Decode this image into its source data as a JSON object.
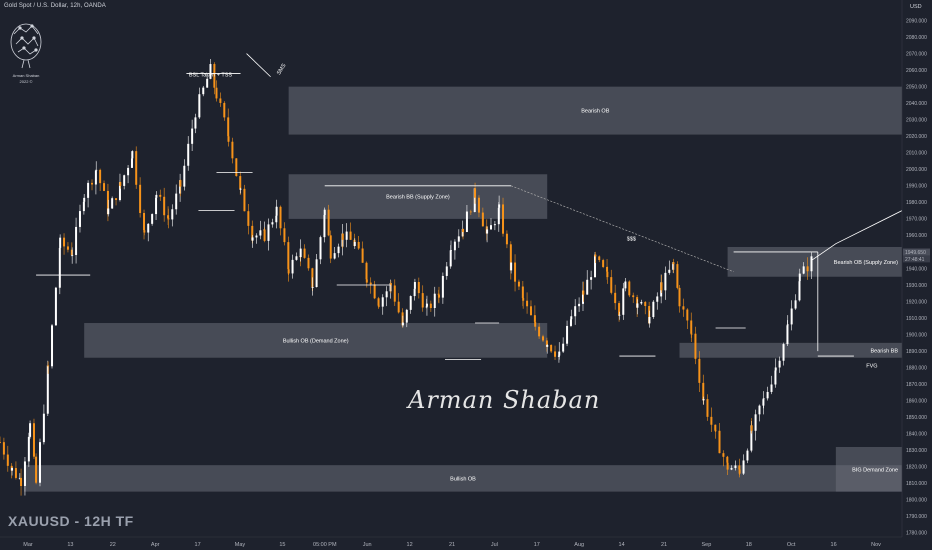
{
  "header": {
    "title": "Gold Spot / U.S. Dollar, 12h, OANDA",
    "currency": "USD",
    "symbol_tf": "XAUUSD - 12H TF"
  },
  "branding": {
    "logo_text_name": "Arman Shaban",
    "logo_text_year": "2022 ©",
    "signature": "Arman Shaban"
  },
  "colors": {
    "background": "#1e222d",
    "bull_candle": "#ffffff",
    "bear_candle": "#f7931a",
    "zone_fill": "#6a6d78",
    "axis_text": "#b2b5be"
  },
  "chart_data": {
    "type": "candlestick",
    "ylim": [
      1780,
      2100
    ],
    "yticks": [
      1780,
      1790,
      1800,
      1810,
      1820,
      1830,
      1840,
      1850,
      1860,
      1870,
      1880,
      1890,
      1900,
      1910,
      1920,
      1930,
      1940,
      1950,
      1960,
      1970,
      1980,
      1990,
      2000,
      2010,
      2020,
      2030,
      2040,
      2050,
      2060,
      2070,
      2080,
      2090
    ],
    "xticks": [
      "Mar",
      "13",
      "22",
      "Apr",
      "17",
      "May",
      "15",
      "05:00 PM",
      "Jun",
      "12",
      "21",
      "Jul",
      "17",
      "Aug",
      "14",
      "21",
      "Sep",
      "18",
      "Oct",
      "16",
      "Nov"
    ],
    "price_labels": [
      {
        "text": "1949.650",
        "y": 1949.65
      },
      {
        "text": "27:48:41",
        "y": 1945.5
      }
    ],
    "path": [
      [
        0,
        1835
      ],
      [
        4,
        1818
      ],
      [
        7,
        1812
      ],
      [
        10,
        1845
      ],
      [
        12,
        1810
      ],
      [
        16,
        1880
      ],
      [
        20,
        1955
      ],
      [
        24,
        1950
      ],
      [
        28,
        1985
      ],
      [
        32,
        2000
      ],
      [
        36,
        1975
      ],
      [
        40,
        1990
      ],
      [
        44,
        2010
      ],
      [
        48,
        1960
      ],
      [
        52,
        1985
      ],
      [
        56,
        1970
      ],
      [
        60,
        1990
      ],
      [
        65,
        2035
      ],
      [
        70,
        2060
      ],
      [
        72,
        2045
      ],
      [
        76,
        2020
      ],
      [
        80,
        1985
      ],
      [
        84,
        1960
      ],
      [
        88,
        1960
      ],
      [
        92,
        1975
      ],
      [
        96,
        1940
      ],
      [
        100,
        1950
      ],
      [
        104,
        1930
      ],
      [
        108,
        1975
      ],
      [
        110,
        1950
      ],
      [
        114,
        1960
      ],
      [
        118,
        1955
      ],
      [
        122,
        1935
      ],
      [
        126,
        1920
      ],
      [
        130,
        1930
      ],
      [
        134,
        1905
      ],
      [
        138,
        1930
      ],
      [
        142,
        1915
      ],
      [
        146,
        1925
      ],
      [
        150,
        1955
      ],
      [
        154,
        1965
      ],
      [
        158,
        1985
      ],
      [
        162,
        1960
      ],
      [
        166,
        1975
      ],
      [
        170,
        1940
      ],
      [
        174,
        1920
      ],
      [
        178,
        1905
      ],
      [
        182,
        1895
      ],
      [
        186,
        1887
      ],
      [
        190,
        1910
      ],
      [
        194,
        1925
      ],
      [
        198,
        1945
      ],
      [
        202,
        1935
      ],
      [
        206,
        1915
      ],
      [
        208,
        1930
      ],
      [
        212,
        1920
      ],
      [
        216,
        1910
      ],
      [
        220,
        1930
      ],
      [
        224,
        1942
      ],
      [
        226,
        1920
      ],
      [
        230,
        1900
      ],
      [
        234,
        1860
      ],
      [
        238,
        1838
      ],
      [
        242,
        1820
      ],
      [
        246,
        1818
      ],
      [
        250,
        1842
      ],
      [
        254,
        1860
      ],
      [
        258,
        1880
      ],
      [
        262,
        1905
      ],
      [
        266,
        1935
      ],
      [
        270,
        1945
      ]
    ],
    "annotations": [
      {
        "text": "Bearish OB",
        "kind": "zone",
        "x0": 96,
        "x1": 300,
        "y0": 2021,
        "y1": 2050
      },
      {
        "text": "Bearish BB (Supply Zone)",
        "kind": "zone",
        "x0": 96,
        "x1": 182,
        "y0": 1970,
        "y1": 1997
      },
      {
        "text": "Bullish OB (Demand Zone)",
        "kind": "zone",
        "x0": 28,
        "x1": 182,
        "y0": 1886,
        "y1": 1907
      },
      {
        "text": "Bearish OB (Supply Zone)",
        "kind": "zone",
        "x0": 242,
        "x1": 300,
        "y0": 1935,
        "y1": 1953
      },
      {
        "text": "Bearish BB",
        "kind": "zone",
        "x0": 226,
        "x1": 300,
        "y0": 1886,
        "y1": 1895
      },
      {
        "text": "BIG Demand Zone",
        "kind": "zone",
        "x0": 278,
        "x1": 300,
        "y0": 1805,
        "y1": 1832
      },
      {
        "text": "Bullish OB",
        "kind": "zone",
        "x0": 8,
        "x1": 300,
        "y0": 1805,
        "y1": 1821
      },
      {
        "text": "BSL Taken + TSS",
        "kind": "label",
        "x": 70,
        "y": 2056
      },
      {
        "text": "SMS",
        "kind": "label",
        "x": 94,
        "y": 2060
      },
      {
        "text": "$$$",
        "kind": "label",
        "x": 210,
        "y": 1957
      },
      {
        "text": "FVG",
        "kind": "label",
        "x": 290,
        "y": 1880
      }
    ],
    "projection": [
      [
        270,
        1945
      ],
      [
        278,
        1955
      ],
      [
        300,
        1975
      ],
      [
        310,
        1965
      ],
      [
        320,
        1990
      ],
      [
        338,
        2020
      ]
    ]
  }
}
